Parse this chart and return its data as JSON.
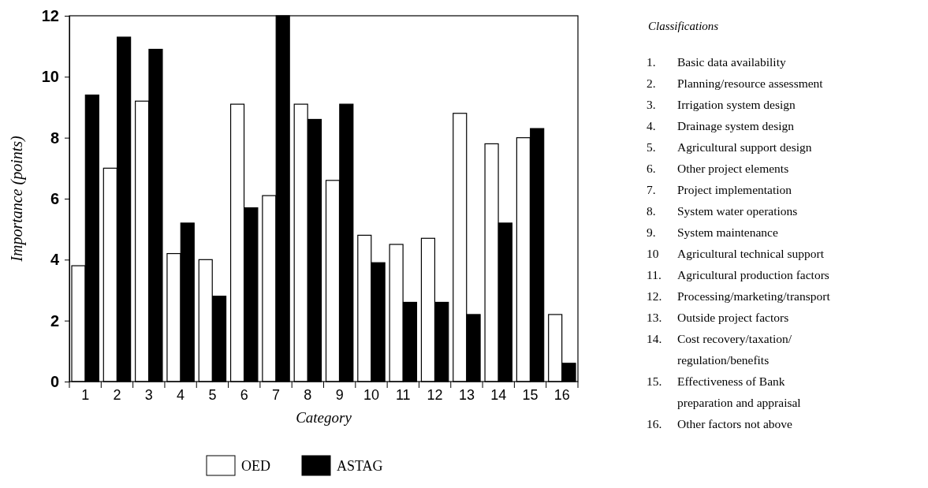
{
  "chart_data": {
    "type": "bar",
    "xlabel": "Category",
    "ylabel": "Importance (points)",
    "categories": [
      "1",
      "2",
      "3",
      "4",
      "5",
      "6",
      "7",
      "8",
      "9",
      "10",
      "11",
      "12",
      "13",
      "14",
      "15",
      "16"
    ],
    "series": [
      {
        "name": "OED",
        "color": "#ffffff",
        "values": [
          3.8,
          7.0,
          9.2,
          4.2,
          4.0,
          9.1,
          6.1,
          9.1,
          6.6,
          4.8,
          4.5,
          4.7,
          8.8,
          7.8,
          8.0,
          2.2
        ]
      },
      {
        "name": "ASTAG",
        "color": "#000000",
        "values": [
          9.4,
          11.3,
          10.9,
          5.2,
          2.8,
          5.7,
          12,
          8.6,
          9.1,
          3.9,
          2.6,
          2.6,
          2.2,
          5.2,
          8.3,
          0.6
        ]
      }
    ],
    "ylim": [
      0,
      12
    ],
    "yticks": [
      0,
      2,
      4,
      6,
      8,
      10,
      12
    ],
    "grid": false,
    "legend": "bottom",
    "annotations": [
      "Classifications",
      "1. Basic data availability",
      "2. Planning/resource assessment",
      "3. Irrigation system design",
      "4. Drainage system design",
      "5. Agricultural support design",
      "6. Other project elements",
      "7. Project implementation",
      "8. System water operations",
      "9. System maintenance",
      "10 Agricultural technical support",
      "11. Agricultural production factors",
      "12. Processing/marketing/transport",
      "13. Outside project factors",
      "14. Cost recovery/taxation/\nregulation/benefits",
      "15. Effectiveness of Bank\npreparation and appraisal",
      "16. Other factors not above"
    ]
  }
}
